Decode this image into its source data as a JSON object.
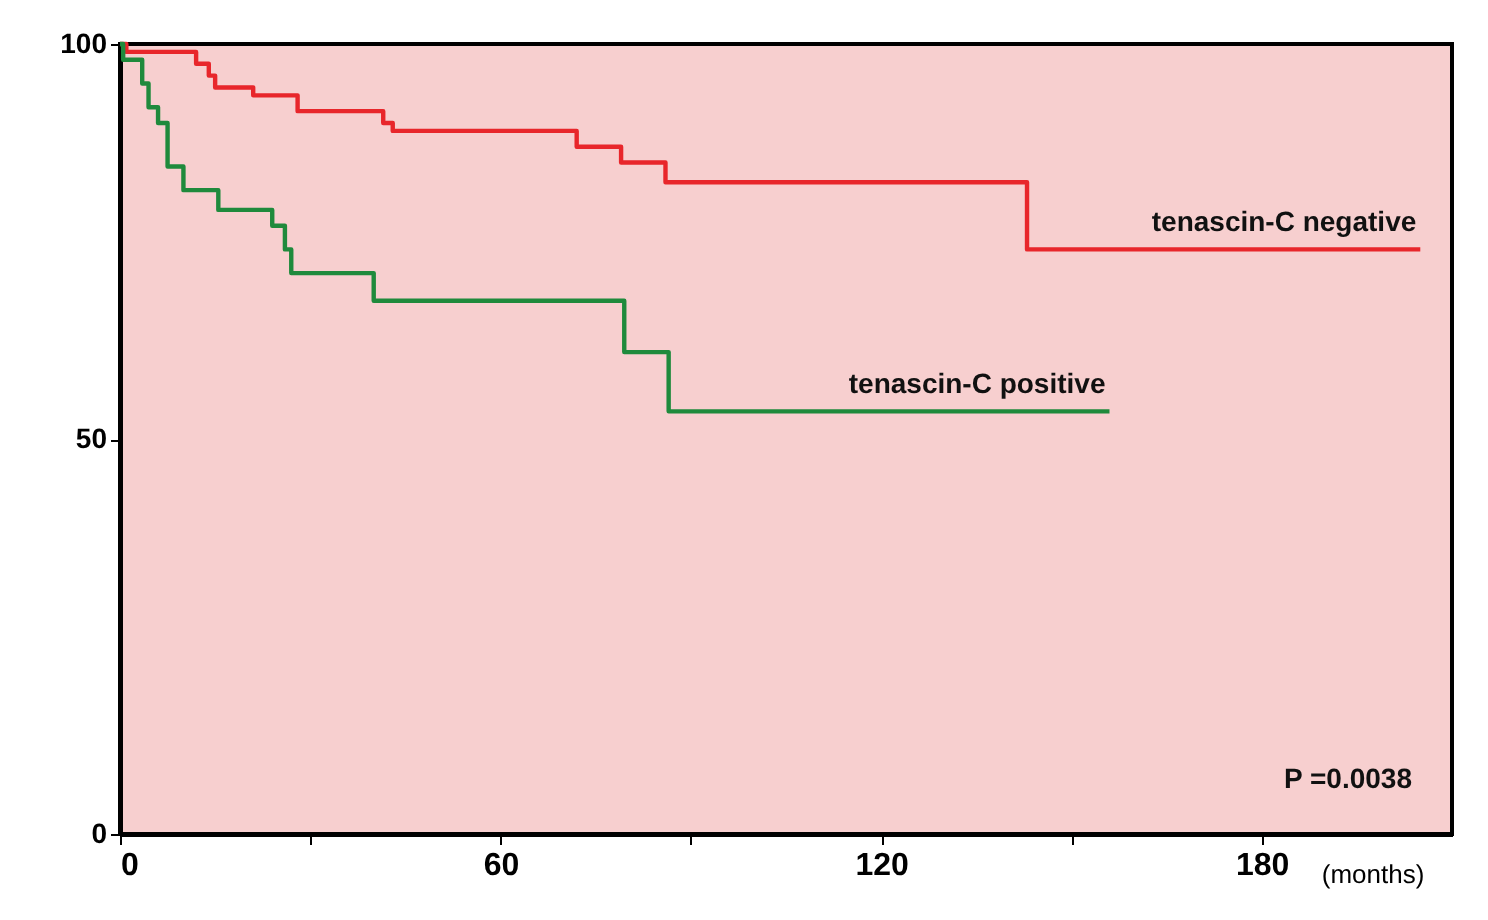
{
  "chart_data": {
    "type": "step",
    "xlabel": "(months)",
    "xlim": [
      0,
      210
    ],
    "ylim": [
      0,
      100
    ],
    "xticks": [
      0,
      {
        "value": 30,
        "label": null
      },
      60,
      {
        "value": 90,
        "label": null
      },
      120,
      {
        "value": 150,
        "label": null
      },
      180
    ],
    "yticks": [
      0,
      50,
      100
    ],
    "grid": false,
    "marker": "none",
    "line_style": "solid",
    "annotations": [
      "P =0.0038"
    ],
    "series": [
      {
        "name": "tenascin-C negative",
        "color": "#e8262b",
        "x": [
          0,
          1,
          12,
          14,
          15,
          21,
          28,
          41.5,
          43,
          72,
          79,
          86,
          143,
          205
        ],
        "values": [
          100,
          99,
          97.5,
          96,
          94.5,
          93.5,
          91.5,
          90,
          89,
          87,
          85,
          82.5,
          74,
          74
        ]
      },
      {
        "name": "tenascin-C positive",
        "color": "#1f8a3c",
        "x": [
          0,
          0.5,
          3.5,
          4.5,
          6,
          7.5,
          10,
          15.5,
          24,
          26,
          27,
          40,
          79.5,
          86.5,
          156
        ],
        "values": [
          100,
          98,
          95,
          92,
          90,
          84.5,
          81.5,
          79,
          77,
          74,
          71,
          67.5,
          61,
          53.5,
          53.5
        ]
      }
    ]
  }
}
